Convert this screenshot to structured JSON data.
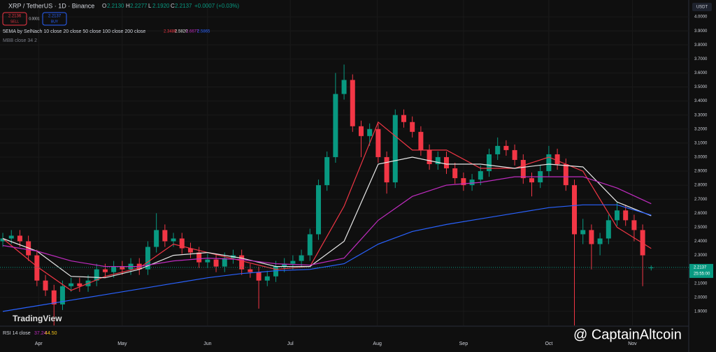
{
  "chart_data": {
    "type": "candlestick",
    "title": "XRP / TetherUS · 1D · Binance",
    "ohlc": {
      "o_label": "O",
      "o": "2.2130",
      "h_label": "H",
      "h": "2.2277",
      "l_label": "L",
      "l": "2.1920",
      "c_label": "C",
      "c": "2.2137",
      "change": "+0.0007 (+0.03%)"
    },
    "sell": {
      "price": "2.2136",
      "label": "SELL"
    },
    "buy": {
      "price": "2.2137",
      "label": "BUY"
    },
    "spread": "0.0001",
    "indicator": "5EMA by SelNach 10 close 20 close 50 close 100 close 200 close",
    "mbb": "MBB close 34 2",
    "rsi": {
      "label": "RSI 14 close",
      "v1": "37.24",
      "v2": "44.50"
    },
    "currency": "USDT",
    "last_price": {
      "value": 2.2137,
      "label": "2.2137"
    },
    "countdown": "25:55:00",
    "logo": "TradingView",
    "watermark": "@ CaptainAltcoin",
    "up_color": "#089981",
    "down_color": "#f23645",
    "ylim": [
      1.8,
      4.12
    ],
    "yticks": [
      {
        "value": 1.9,
        "label": "1.9000"
      },
      {
        "value": 2.0,
        "label": "2.0000"
      },
      {
        "value": 2.1,
        "label": "2.1000"
      },
      {
        "value": 2.2,
        "label": "2.2000"
      },
      {
        "value": 2.3,
        "label": "2.3000"
      },
      {
        "value": 2.4,
        "label": "2.4000"
      },
      {
        "value": 2.5,
        "label": "2.5000"
      },
      {
        "value": 2.6,
        "label": "2.6000"
      },
      {
        "value": 2.7,
        "label": "2.7000"
      },
      {
        "value": 2.8,
        "label": "2.8000"
      },
      {
        "value": 2.9,
        "label": "2.9000"
      },
      {
        "value": 3.0,
        "label": "3.0000"
      },
      {
        "value": 3.1,
        "label": "3.1000"
      },
      {
        "value": 3.2,
        "label": "3.2000"
      },
      {
        "value": 3.3,
        "label": "3.3000"
      },
      {
        "value": 3.4,
        "label": "3.4000"
      },
      {
        "value": 3.5,
        "label": "3.5000"
      },
      {
        "value": 3.6,
        "label": "3.6000"
      },
      {
        "value": 3.7,
        "label": "3.7000"
      },
      {
        "value": 3.8,
        "label": "3.8000"
      },
      {
        "value": 3.9,
        "label": "3.9000"
      },
      {
        "value": 4.0,
        "label": "4.0000"
      }
    ],
    "xlim": [
      -0.33,
      80.4
    ],
    "xticks": [
      {
        "value": 4.2,
        "label": "Apr"
      },
      {
        "value": 14,
        "label": "May"
      },
      {
        "value": 24,
        "label": "Jun"
      },
      {
        "value": 33.7,
        "label": "Jul"
      },
      {
        "value": 43.9,
        "label": "Aug"
      },
      {
        "value": 54,
        "label": "Sep"
      },
      {
        "value": 64,
        "label": "Oct"
      },
      {
        "value": 73.8,
        "label": "Nov"
      }
    ],
    "candles": {
      "open": [
        2.4,
        2.42,
        2.44,
        2.4,
        2.3,
        2.12,
        2.05,
        1.95,
        2.08,
        2.1,
        2.08,
        2.12,
        2.2,
        2.18,
        2.22,
        2.2,
        2.24,
        2.2,
        2.36,
        2.48,
        2.4,
        2.42,
        2.35,
        2.32,
        2.25,
        2.27,
        2.22,
        2.28,
        2.3,
        2.2,
        2.18,
        2.12,
        2.15,
        2.22,
        2.24,
        2.26,
        2.3,
        2.45,
        2.8,
        3.0,
        3.45,
        3.55,
        3.22,
        3.15,
        3.2,
        3.0,
        2.82,
        3.3,
        3.25,
        3.18,
        3.05,
        2.95,
        3.0,
        2.92,
        2.85,
        2.8,
        2.84,
        2.9,
        3.02,
        3.08,
        3.05,
        2.98,
        2.85,
        2.82,
        2.9,
        3.02,
        2.95,
        2.8,
        2.45,
        2.48,
        2.38,
        2.42,
        2.55,
        2.62,
        2.55,
        2.48,
        2.213
      ],
      "high": [
        2.46,
        2.48,
        2.48,
        2.44,
        2.34,
        2.16,
        2.09,
        2.12,
        2.14,
        2.14,
        2.16,
        2.24,
        2.24,
        2.26,
        2.26,
        2.28,
        2.28,
        2.4,
        2.6,
        2.52,
        2.46,
        2.46,
        2.39,
        2.36,
        2.31,
        2.31,
        2.32,
        2.34,
        2.34,
        2.24,
        2.22,
        2.19,
        2.26,
        2.28,
        2.3,
        2.34,
        2.49,
        2.84,
        3.04,
        3.6,
        3.66,
        3.59,
        3.26,
        3.24,
        3.24,
        3.04,
        3.34,
        3.34,
        3.29,
        3.22,
        3.09,
        3.04,
        3.04,
        2.96,
        2.89,
        2.88,
        2.94,
        3.06,
        3.14,
        3.12,
        3.09,
        3.02,
        2.89,
        2.94,
        3.08,
        3.06,
        2.99,
        2.84,
        2.56,
        2.52,
        2.46,
        2.59,
        2.68,
        2.66,
        2.59,
        2.52,
        2.2277
      ],
      "low": [
        2.36,
        2.38,
        2.36,
        2.26,
        2.08,
        2.01,
        1.8,
        1.91,
        2.04,
        2.04,
        2.04,
        2.08,
        2.14,
        2.14,
        2.16,
        2.16,
        2.16,
        2.16,
        2.32,
        2.36,
        2.36,
        2.31,
        2.28,
        2.21,
        2.21,
        2.18,
        2.18,
        2.24,
        2.16,
        2.14,
        1.92,
        2.08,
        2.11,
        2.18,
        2.2,
        2.22,
        2.26,
        2.41,
        2.76,
        2.96,
        3.41,
        3.18,
        3.0,
        3.08,
        2.96,
        2.74,
        2.78,
        3.21,
        3.14,
        3.01,
        2.91,
        2.91,
        2.88,
        2.81,
        2.76,
        2.76,
        2.8,
        2.86,
        2.98,
        3.01,
        2.94,
        2.81,
        2.72,
        2.78,
        2.86,
        2.91,
        2.76,
        1.8,
        2.38,
        2.2,
        2.3,
        2.38,
        2.51,
        2.51,
        2.4,
        2.08,
        2.192
      ],
      "close": [
        2.42,
        2.44,
        2.4,
        2.3,
        2.12,
        2.05,
        1.95,
        2.08,
        2.1,
        2.08,
        2.12,
        2.2,
        2.18,
        2.22,
        2.2,
        2.24,
        2.2,
        2.36,
        2.48,
        2.4,
        2.42,
        2.35,
        2.32,
        2.25,
        2.27,
        2.22,
        2.28,
        2.3,
        2.2,
        2.18,
        2.12,
        2.15,
        2.22,
        2.24,
        2.26,
        2.3,
        2.45,
        2.8,
        3.0,
        3.45,
        3.55,
        3.22,
        3.15,
        3.2,
        3.0,
        2.82,
        3.3,
        3.25,
        3.18,
        3.05,
        2.95,
        3.0,
        2.92,
        2.85,
        2.8,
        2.84,
        2.9,
        3.02,
        3.08,
        3.05,
        2.98,
        2.85,
        2.82,
        2.9,
        3.02,
        2.95,
        2.8,
        2.45,
        2.48,
        2.38,
        2.42,
        2.55,
        2.62,
        2.55,
        2.48,
        2.3,
        2.2137
      ]
    },
    "ema_x": [
      0,
      4,
      8,
      12,
      16,
      20,
      24,
      28,
      32,
      36,
      40,
      44,
      48,
      52,
      56,
      60,
      64,
      68,
      72,
      76
    ],
    "series": [
      {
        "color": "#f23645",
        "values": [
          2.42,
          2.22,
          2.05,
          2.15,
          2.21,
          2.38,
          2.32,
          2.26,
          2.2,
          2.22,
          2.65,
          3.25,
          3.05,
          3.05,
          2.92,
          2.92,
          3.0,
          2.9,
          2.5,
          2.3488
        ],
        "label": "2.3488"
      },
      {
        "color": "#e8e8e8",
        "values": [
          2.42,
          2.33,
          2.15,
          2.14,
          2.2,
          2.3,
          2.32,
          2.28,
          2.22,
          2.22,
          2.4,
          2.95,
          3.0,
          2.95,
          2.95,
          2.92,
          2.95,
          2.93,
          2.68,
          2.582
        ],
        "label": "2.5820"
      },
      {
        "color": "#c02cc0",
        "values": [
          2.37,
          2.33,
          2.26,
          2.22,
          2.22,
          2.26,
          2.28,
          2.27,
          2.24,
          2.23,
          2.28,
          2.55,
          2.72,
          2.8,
          2.82,
          2.86,
          2.86,
          2.86,
          2.78,
          2.6677
        ],
        "label": "2.6677"
      },
      {
        "color": "#2962ff",
        "values": [
          1.9,
          1.94,
          1.98,
          2.02,
          2.06,
          2.1,
          2.14,
          2.17,
          2.19,
          2.2,
          2.24,
          2.38,
          2.47,
          2.52,
          2.56,
          2.6,
          2.64,
          2.66,
          2.66,
          2.5865
        ],
        "label": "2.5865"
      }
    ]
  }
}
